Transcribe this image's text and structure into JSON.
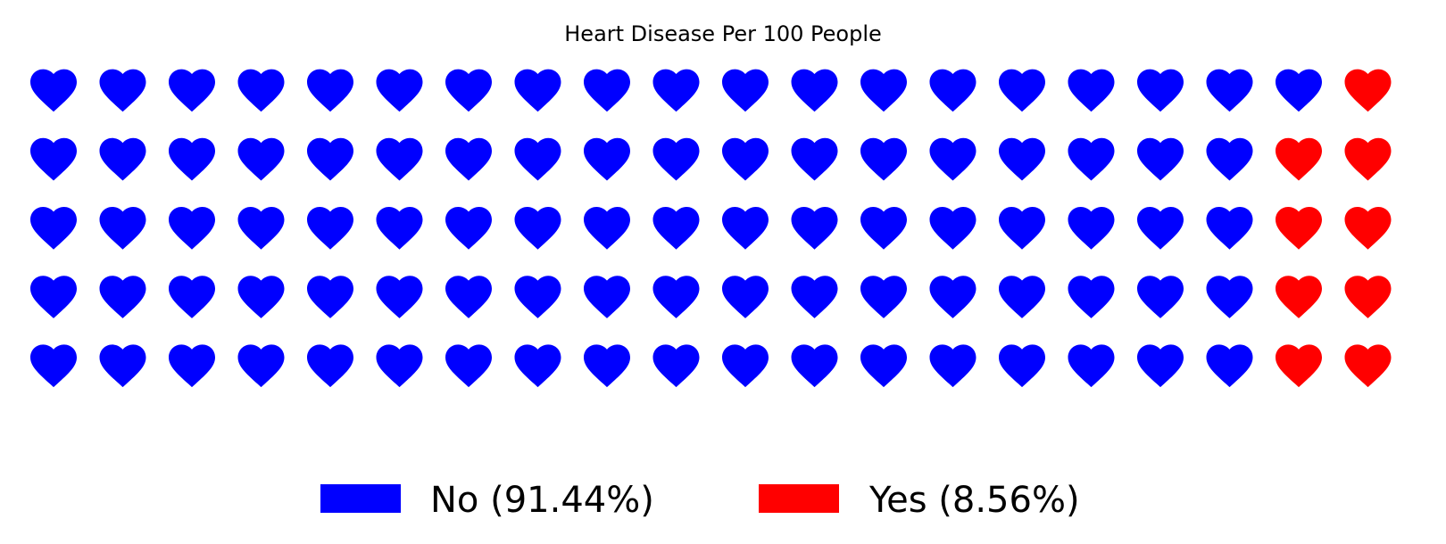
{
  "chart_data": {
    "type": "waffle",
    "title": "Heart Disease Per 100 People",
    "rows": 5,
    "columns": 20,
    "icon": "heart-icon",
    "series": [
      {
        "name": "No",
        "legend_label": "No (91.44%)",
        "percent": 91.44,
        "icon_count": 91,
        "color": "#0000ff"
      },
      {
        "name": "Yes",
        "legend_label": "Yes (8.56%)",
        "percent": 8.56,
        "icon_count": 9,
        "color": "#ff0000"
      }
    ],
    "fill_order": "column-major from right, bottom to top"
  }
}
